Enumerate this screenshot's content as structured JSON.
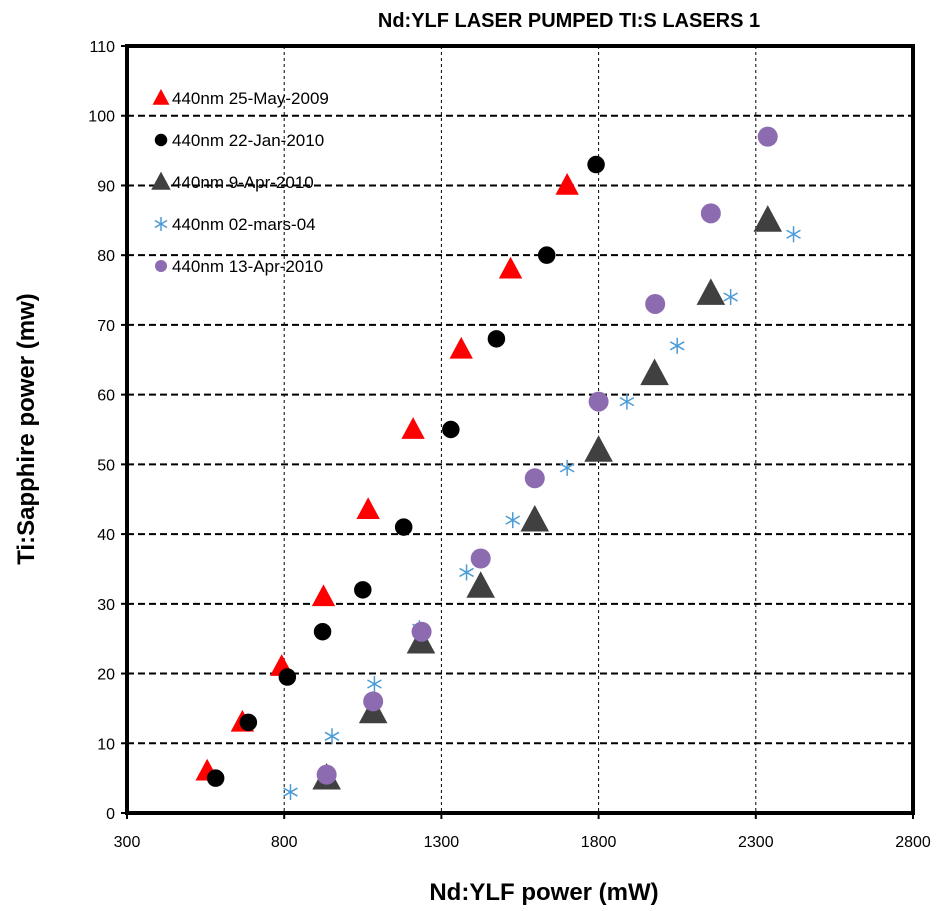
{
  "chart_data": {
    "type": "scatter",
    "title": "Nd:YLF LASER PUMPED  TI:S LASERS 1",
    "xlabel": "Nd:YLF power (mW)",
    "ylabel": "Ti:Sapphire power (mw)",
    "xlim": [
      300,
      2800
    ],
    "ylim": [
      0,
      110
    ],
    "x_ticks": [
      "300",
      "800",
      "1300",
      "1800",
      "2300",
      "2800"
    ],
    "y_ticks": [
      "0",
      "10",
      "20",
      "30",
      "40",
      "50",
      "60",
      "70",
      "80",
      "90",
      "100",
      "110"
    ],
    "grid": "dashed",
    "legend_position": "top-left",
    "series": [
      {
        "name": "440nm  25-May-2009",
        "marker": "triangle",
        "color": "#ff0000",
        "points": [
          [
            555,
            6
          ],
          [
            667,
            13
          ],
          [
            792,
            21
          ],
          [
            925,
            31
          ],
          [
            1067,
            43.5
          ],
          [
            1210,
            55
          ],
          [
            1363,
            66.5
          ],
          [
            1520,
            78
          ],
          [
            1700,
            90
          ]
        ]
      },
      {
        "name": "440nm  22-Jan-2010",
        "marker": "circle",
        "color": "#000000",
        "points": [
          [
            582,
            5
          ],
          [
            686,
            13
          ],
          [
            810,
            19.5
          ],
          [
            922,
            26
          ],
          [
            1050,
            32
          ],
          [
            1180,
            41
          ],
          [
            1330,
            55
          ],
          [
            1475,
            68
          ],
          [
            1635,
            80
          ],
          [
            1792,
            93
          ]
        ]
      },
      {
        "name": "440nm  9-Apr-2010",
        "marker": "triangle",
        "color": "#404040",
        "points": [
          [
            935,
            5
          ],
          [
            1083,
            14.5
          ],
          [
            1235,
            24.5
          ],
          [
            1425,
            32.5
          ],
          [
            1597,
            42
          ],
          [
            1800,
            52
          ],
          [
            1978,
            63
          ],
          [
            2157,
            74.5
          ],
          [
            2338,
            85
          ]
        ]
      },
      {
        "name": "440nm  02-mars-04",
        "marker": "asterisk",
        "color": "#4a9bd6",
        "points": [
          [
            820,
            3
          ],
          [
            952,
            11
          ],
          [
            1087,
            18.5
          ],
          [
            1230,
            26.5
          ],
          [
            1380,
            34.5
          ],
          [
            1527,
            42
          ],
          [
            1700,
            49.5
          ],
          [
            1890,
            59
          ],
          [
            2050,
            67
          ],
          [
            2220,
            74
          ],
          [
            2420,
            83
          ]
        ]
      },
      {
        "name": "440nm  13-Apr-2010",
        "marker": "circle",
        "color": "#8c6bb1",
        "points": [
          [
            935,
            5.5
          ],
          [
            1083,
            16
          ],
          [
            1237,
            26
          ],
          [
            1425,
            36.5
          ],
          [
            1597,
            48
          ],
          [
            1800,
            59
          ],
          [
            1980,
            73
          ],
          [
            2157,
            86
          ],
          [
            2338,
            97
          ]
        ]
      }
    ]
  }
}
